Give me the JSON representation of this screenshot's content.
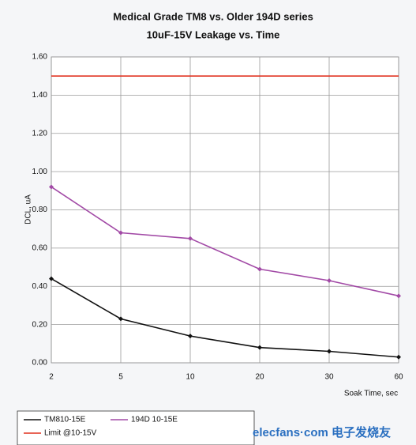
{
  "chart_data": {
    "type": "line",
    "title": "Medical Grade TM8 vs. Older 194D series",
    "subtitle": "10uF-15V    Leakage vs. Time",
    "x_label": "Soak Time, sec",
    "y_label": "DCL, uA",
    "categories": [
      "2",
      "5",
      "10",
      "20",
      "30",
      "60"
    ],
    "series": [
      {
        "name": "TM810-15E",
        "color": "#111111",
        "values": [
          0.44,
          0.23,
          0.14,
          0.08,
          0.06,
          0.03
        ]
      },
      {
        "name": "194D 10-15E",
        "color": "#a24aa6",
        "values": [
          0.92,
          0.68,
          0.65,
          0.49,
          0.43,
          0.35
        ]
      },
      {
        "name": "Limit @10-15V",
        "color": "#e0301e",
        "values": [
          1.5,
          1.5,
          1.5,
          1.5,
          1.5,
          1.5
        ]
      }
    ],
    "ylim": [
      0,
      1.6
    ],
    "yticks": [
      {
        "value": 0,
        "label": "0.00"
      },
      {
        "value": 0.2,
        "label": "0.20"
      },
      {
        "value": 0.4,
        "label": "0.40"
      },
      {
        "value": 0.6,
        "label": "0.60"
      },
      {
        "value": 0.8,
        "label": "0.80"
      },
      {
        "value": 1,
        "label": "1.00"
      },
      {
        "value": 1.2,
        "label": "1.20"
      },
      {
        "value": 1.4,
        "label": "1.40"
      },
      {
        "value": 1.6,
        "label": "1.60"
      }
    ],
    "grid": true,
    "watermark": "elecfans·com 电子发烧友"
  }
}
